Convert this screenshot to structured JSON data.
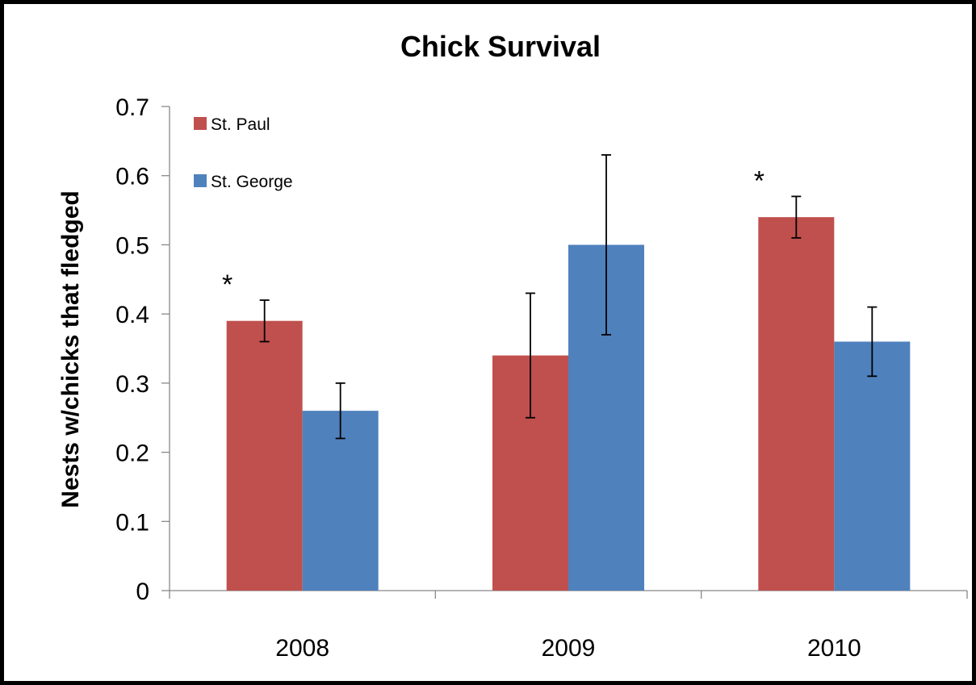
{
  "chart_data": {
    "type": "bar",
    "title": "Chick Survival",
    "xlabel": "",
    "ylabel": "Nests w/chicks that fledged",
    "categories": [
      "2008",
      "2009",
      "2010"
    ],
    "ylim": [
      0,
      0.7
    ],
    "yticks": [
      "0",
      "0.1",
      "0.2",
      "0.3",
      "0.4",
      "0.5",
      "0.6",
      "0.7"
    ],
    "grid": false,
    "legend_position": "top-left",
    "series": [
      {
        "name": "St. Paul",
        "color": "#C0504D",
        "values": [
          0.39,
          0.34,
          0.54
        ],
        "error_low": [
          0.36,
          0.25,
          0.51
        ],
        "error_high": [
          0.42,
          0.43,
          0.57
        ],
        "annotations": [
          "*",
          "",
          "*"
        ]
      },
      {
        "name": "St. George",
        "color": "#4F81BD",
        "values": [
          0.26,
          0.5,
          0.36
        ],
        "error_low": [
          0.22,
          0.37,
          0.31
        ],
        "error_high": [
          0.3,
          0.63,
          0.41
        ],
        "annotations": [
          "",
          "",
          ""
        ]
      }
    ]
  }
}
